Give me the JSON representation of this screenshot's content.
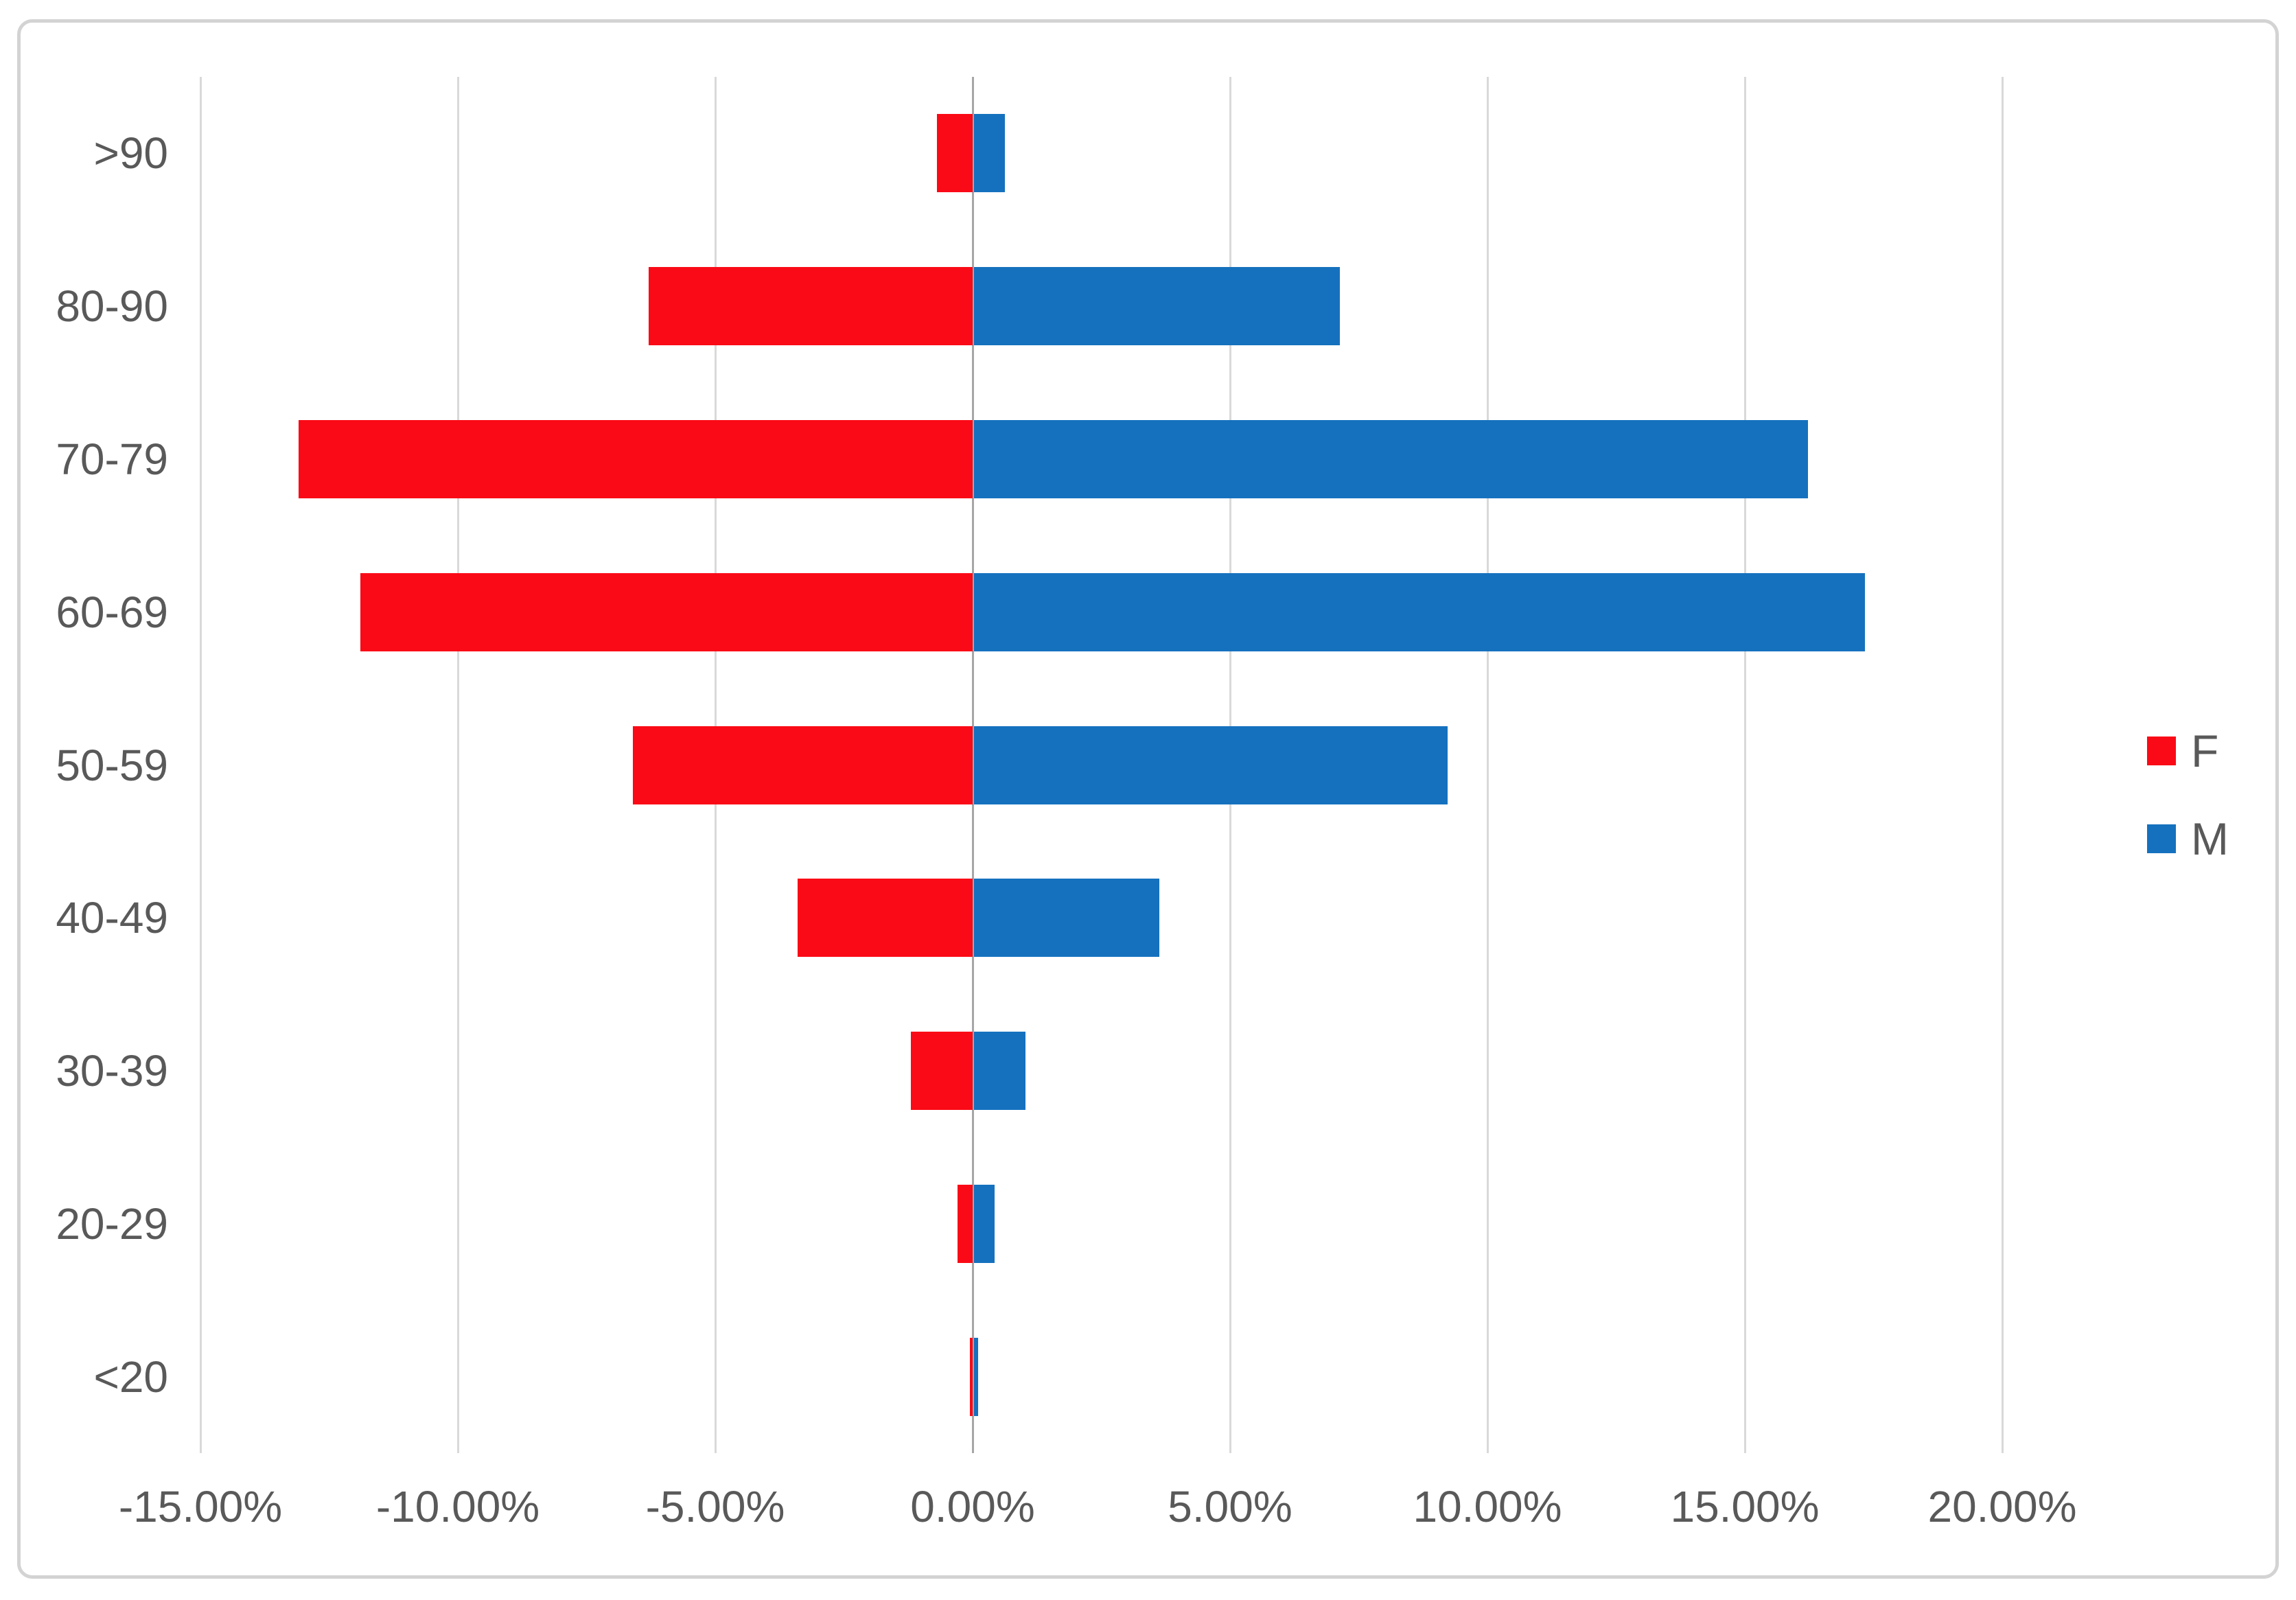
{
  "chart_data": {
    "type": "bar",
    "orientation": "horizontal",
    "subtype": "population-pyramid",
    "title": "",
    "categories": [
      ">90",
      "80-90",
      "70-79",
      "60-69",
      "50-59",
      "40-49",
      "30-39",
      "20-29",
      "<20"
    ],
    "series": [
      {
        "name": "F",
        "color": "#fa0a16",
        "values": [
          -0.7,
          -6.3,
          -13.1,
          -11.9,
          -6.6,
          -3.4,
          -1.2,
          -0.3,
          -0.05
        ]
      },
      {
        "name": "M",
        "color": "#1571be",
        "values": [
          0.6,
          7.1,
          16.2,
          17.3,
          9.2,
          3.6,
          1.0,
          0.4,
          0.08
        ]
      }
    ],
    "x_axis": {
      "min": -15,
      "max": 20,
      "step": 5,
      "unit": "%",
      "ticks": [
        {
          "value": -15,
          "label": "-15.00%"
        },
        {
          "value": -10,
          "label": "-10.00%"
        },
        {
          "value": -5,
          "label": "-5.00%"
        },
        {
          "value": 0,
          "label": "0.00%"
        },
        {
          "value": 5,
          "label": "5.00%"
        },
        {
          "value": 10,
          "label": "10.00%"
        },
        {
          "value": 15,
          "label": "15.00%"
        },
        {
          "value": 20,
          "label": "20.00%"
        }
      ]
    },
    "legend": {
      "position": "right",
      "entries": [
        "F",
        "M"
      ]
    },
    "grid": true,
    "colors": {
      "text": "#595959",
      "gridline": "#d9d9d9",
      "zero_axis": "#a6a6a6",
      "frame_border": "#d3d3d3",
      "background": "#ffffff"
    }
  }
}
